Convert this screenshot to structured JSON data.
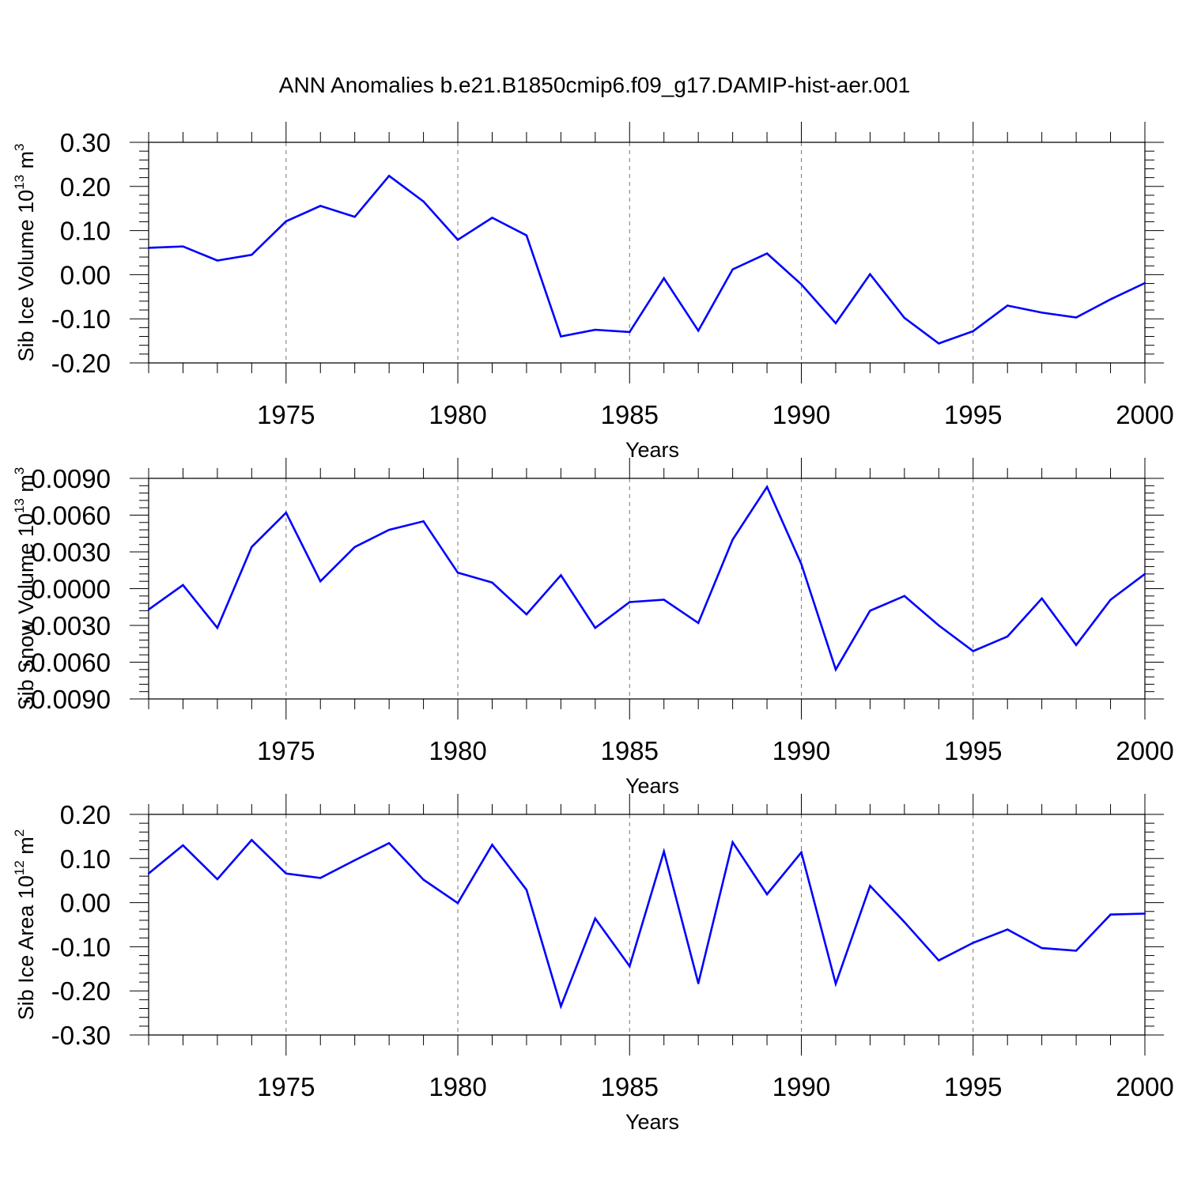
{
  "title": "ANN Anomalies b.e21.B1850cmip6.f09_g17.DAMIP-hist-aer.001",
  "chart_data": [
    {
      "type": "line",
      "ylabel": "Sib Ice Volume 10",
      "ylabel_sup": "13",
      "ylabel_unit": " m",
      "ylabel_unit_sup": "3",
      "xlabel": "Years",
      "xlim": [
        1971,
        2000
      ],
      "ylim": [
        -0.2,
        0.3
      ],
      "yticks": [
        -0.2,
        -0.1,
        0.0,
        0.1,
        0.2,
        0.3
      ],
      "ytick_labels": [
        "-0.20",
        "-0.10",
        "0.00",
        "0.10",
        "0.20",
        "0.30"
      ],
      "xticks": [
        1975,
        1980,
        1985,
        1990,
        1995,
        2000
      ],
      "xtick_labels": [
        "1975",
        "1980",
        "1985",
        "1990",
        "1995",
        "2000"
      ],
      "grid": "vertical dashed at labelled years",
      "line_color": "#0000ff",
      "x": [
        1971,
        1972,
        1973,
        1974,
        1975,
        1976,
        1977,
        1978,
        1979,
        1980,
        1981,
        1982,
        1983,
        1984,
        1985,
        1986,
        1987,
        1988,
        1989,
        1990,
        1991,
        1992,
        1993,
        1994,
        1995,
        1996,
        1997,
        1998,
        1999,
        2000
      ],
      "y": [
        0.061,
        0.064,
        0.032,
        0.045,
        0.121,
        0.156,
        0.131,
        0.224,
        0.166,
        0.079,
        0.129,
        0.089,
        -0.14,
        -0.125,
        -0.13,
        -0.008,
        -0.127,
        0.012,
        0.048,
        -0.022,
        -0.11,
        0.001,
        -0.098,
        -0.156,
        -0.128,
        -0.07,
        -0.086,
        -0.097,
        -0.056,
        -0.019
      ]
    },
    {
      "type": "line",
      "ylabel": "Sib Snow Volume 10",
      "ylabel_sup": "13",
      "ylabel_unit": " m",
      "ylabel_unit_sup": "3",
      "xlabel": "Years",
      "xlim": [
        1971,
        2000
      ],
      "ylim": [
        -0.009,
        0.009
      ],
      "yticks": [
        -0.009,
        -0.006,
        -0.003,
        0.0,
        0.003,
        0.006,
        0.009
      ],
      "ytick_labels": [
        "-0.0090",
        "-0.0060",
        "-0.0030",
        "0.0000",
        "0.0030",
        "0.0060",
        "0.0090"
      ],
      "xticks": [
        1975,
        1980,
        1985,
        1990,
        1995,
        2000
      ],
      "xtick_labels": [
        "1975",
        "1980",
        "1985",
        "1990",
        "1995",
        "2000"
      ],
      "grid": "vertical dashed at labelled years",
      "line_color": "#0000ff",
      "x": [
        1971,
        1972,
        1973,
        1974,
        1975,
        1976,
        1977,
        1978,
        1979,
        1980,
        1981,
        1982,
        1983,
        1984,
        1985,
        1986,
        1987,
        1988,
        1989,
        1990,
        1991,
        1992,
        1993,
        1994,
        1995,
        1996,
        1997,
        1998,
        1999,
        2000
      ],
      "y": [
        -0.0017,
        0.0003,
        -0.0032,
        0.0034,
        0.0062,
        0.0006,
        0.0034,
        0.0048,
        0.0055,
        0.0013,
        0.0005,
        -0.0021,
        0.0011,
        -0.0032,
        -0.0011,
        -0.0009,
        -0.0028,
        0.004,
        0.0083,
        0.002,
        -0.0066,
        -0.0018,
        -0.0006,
        -0.003,
        -0.0051,
        -0.0039,
        -0.0008,
        -0.0046,
        -0.0009,
        0.0012
      ]
    },
    {
      "type": "line",
      "ylabel": "Sib Ice Area 10",
      "ylabel_sup": "12",
      "ylabel_unit": " m",
      "ylabel_unit_sup": "2",
      "xlabel": "Years",
      "xlim": [
        1971,
        2000
      ],
      "ylim": [
        -0.3,
        0.2
      ],
      "yticks": [
        -0.3,
        -0.2,
        -0.1,
        0.0,
        0.1,
        0.2
      ],
      "ytick_labels": [
        "-0.30",
        "-0.20",
        "-0.10",
        "0.00",
        "0.10",
        "0.20"
      ],
      "xticks": [
        1975,
        1980,
        1985,
        1990,
        1995,
        2000
      ],
      "xtick_labels": [
        "1975",
        "1980",
        "1985",
        "1990",
        "1995",
        "2000"
      ],
      "grid": "vertical dashed at labelled years",
      "line_color": "#0000ff",
      "x": [
        1971,
        1972,
        1973,
        1974,
        1975,
        1976,
        1977,
        1978,
        1979,
        1980,
        1981,
        1982,
        1983,
        1984,
        1985,
        1986,
        1987,
        1988,
        1989,
        1990,
        1991,
        1992,
        1993,
        1994,
        1995,
        1996,
        1997,
        1998,
        1999,
        2000
      ],
      "y": [
        0.066,
        0.13,
        0.053,
        0.142,
        0.066,
        0.056,
        0.096,
        0.135,
        0.052,
        -0.001,
        0.131,
        0.029,
        -0.235,
        -0.036,
        -0.144,
        0.116,
        -0.183,
        0.137,
        0.019,
        0.114,
        -0.184,
        0.038,
        -0.044,
        -0.131,
        -0.091,
        -0.061,
        -0.103,
        -0.109,
        -0.027,
        -0.025
      ]
    }
  ]
}
